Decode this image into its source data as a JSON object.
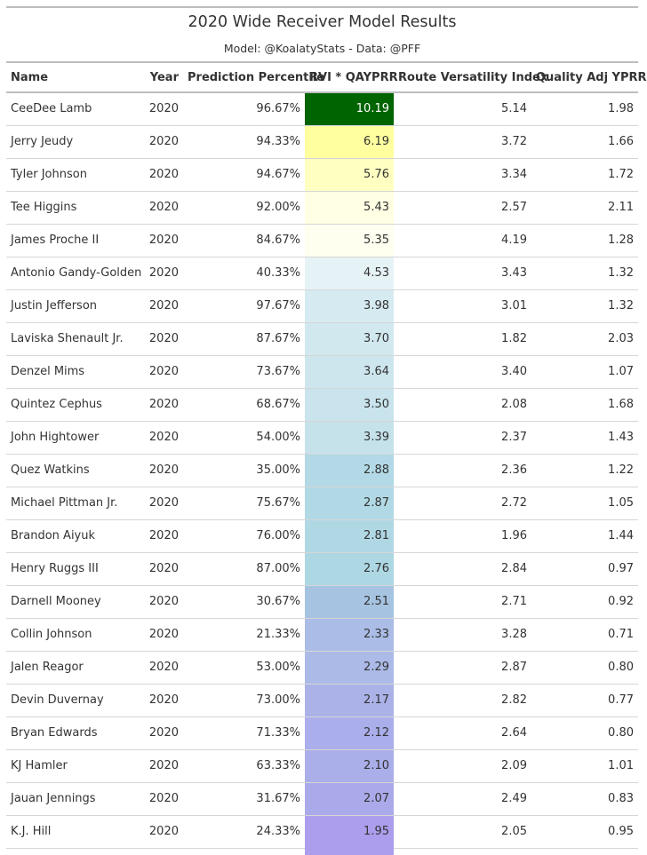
{
  "chart_data": {
    "type": "table",
    "title": "2020 Wide Receiver Model Results",
    "subtitle": "Model: @KoalatyStats - Data: @PFF",
    "columns": [
      "Name",
      "Year",
      "Prediction Percentile",
      "RVI * QAYPRR",
      "Route Versatility Index",
      "Quality Adj YPRR"
    ],
    "rows": [
      [
        "CeeDee Lamb",
        "2020",
        "96.67%",
        "10.19",
        "5.14",
        "1.98"
      ],
      [
        "Jerry Jeudy",
        "2020",
        "94.33%",
        "6.19",
        "3.72",
        "1.66"
      ],
      [
        "Tyler Johnson",
        "2020",
        "94.67%",
        "5.76",
        "3.34",
        "1.72"
      ],
      [
        "Tee Higgins",
        "2020",
        "92.00%",
        "5.43",
        "2.57",
        "2.11"
      ],
      [
        "James Proche II",
        "2020",
        "84.67%",
        "5.35",
        "4.19",
        "1.28"
      ],
      [
        "Antonio Gandy-Golden",
        "2020",
        "40.33%",
        "4.53",
        "3.43",
        "1.32"
      ],
      [
        "Justin Jefferson",
        "2020",
        "97.67%",
        "3.98",
        "3.01",
        "1.32"
      ],
      [
        "Laviska Shenault Jr.",
        "2020",
        "87.67%",
        "3.70",
        "1.82",
        "2.03"
      ],
      [
        "Denzel Mims",
        "2020",
        "73.67%",
        "3.64",
        "3.40",
        "1.07"
      ],
      [
        "Quintez Cephus",
        "2020",
        "68.67%",
        "3.50",
        "2.08",
        "1.68"
      ],
      [
        "John Hightower",
        "2020",
        "54.00%",
        "3.39",
        "2.37",
        "1.43"
      ],
      [
        "Quez Watkins",
        "2020",
        "35.00%",
        "2.88",
        "2.36",
        "1.22"
      ],
      [
        "Michael Pittman Jr.",
        "2020",
        "75.67%",
        "2.87",
        "2.72",
        "1.05"
      ],
      [
        "Brandon Aiyuk",
        "2020",
        "76.00%",
        "2.81",
        "1.96",
        "1.44"
      ],
      [
        "Henry Ruggs III",
        "2020",
        "87.00%",
        "2.76",
        "2.84",
        "0.97"
      ],
      [
        "Darnell Mooney",
        "2020",
        "30.67%",
        "2.51",
        "2.71",
        "0.92"
      ],
      [
        "Collin Johnson",
        "2020",
        "21.33%",
        "2.33",
        "3.28",
        "0.71"
      ],
      [
        "Jalen Reagor",
        "2020",
        "53.00%",
        "2.29",
        "2.87",
        "0.80"
      ],
      [
        "Devin Duvernay",
        "2020",
        "73.00%",
        "2.17",
        "2.82",
        "0.77"
      ],
      [
        "Bryan Edwards",
        "2020",
        "71.33%",
        "2.12",
        "2.64",
        "0.80"
      ],
      [
        "KJ Hamler",
        "2020",
        "63.33%",
        "2.10",
        "2.09",
        "1.01"
      ],
      [
        "Jauan Jennings",
        "2020",
        "31.67%",
        "2.07",
        "2.49",
        "0.83"
      ],
      [
        "K.J. Hill",
        "2020",
        "24.33%",
        "1.95",
        "2.05",
        "0.95"
      ]
    ],
    "heat_colors": [
      "#006400",
      "#ffff9f",
      "#ffffc2",
      "#ffffe3",
      "#fffff0",
      "#e6f3f6",
      "#d6ebf1",
      "#d1e8ef",
      "#cde6ee",
      "#c9e4ed",
      "#c5e2eb",
      "#b2d9e5",
      "#b1d9e5",
      "#b0d8e4",
      "#add7e3",
      "#a6c4e2",
      "#abbce6",
      "#acbae8",
      "#aab2e8",
      "#aaaeea",
      "#aaaee9",
      "#aaaaea",
      "#ac9eed"
    ],
    "heat_text_dark_bg": "#ffffff"
  }
}
